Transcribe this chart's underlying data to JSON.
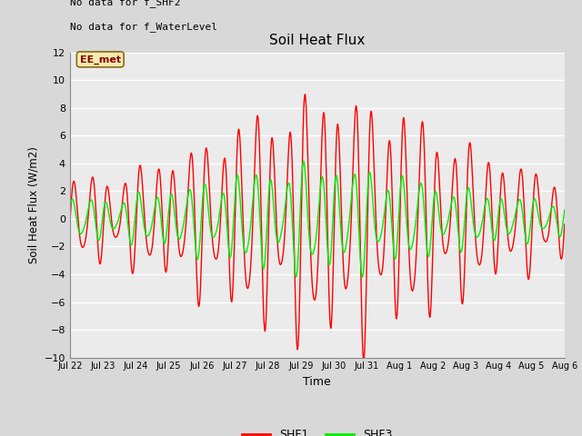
{
  "title": "Soil Heat Flux",
  "xlabel": "Time",
  "ylabel": "Soil Heat Flux (W/m2)",
  "ylim": [
    -10,
    12
  ],
  "yticks": [
    -10,
    -8,
    -6,
    -4,
    -2,
    0,
    2,
    4,
    6,
    8,
    10,
    12
  ],
  "xtick_labels": [
    "Jul 22",
    "Jul 23",
    "Jul 24",
    "Jul 25",
    "Jul 26",
    "Jul 27",
    "Jul 28",
    "Jul 29",
    "Jul 30",
    "Jul 31",
    "Aug 1",
    "Aug 2",
    "Aug 3",
    "Aug 4",
    "Aug 5",
    "Aug 6"
  ],
  "note_line1": "No data for f_SHF2",
  "note_line2": "No data for f_WaterLevel",
  "annotation": "EE_met",
  "shf1_color": "#FF0000",
  "shf3_color": "#00EE00",
  "bg_color": "#D8D8D8",
  "plot_bg_color": "#EBEBEB",
  "legend_shf1": "SHF1",
  "legend_shf3": "SHF3",
  "figsize": [
    6.4,
    4.8
  ],
  "dpi": 100
}
